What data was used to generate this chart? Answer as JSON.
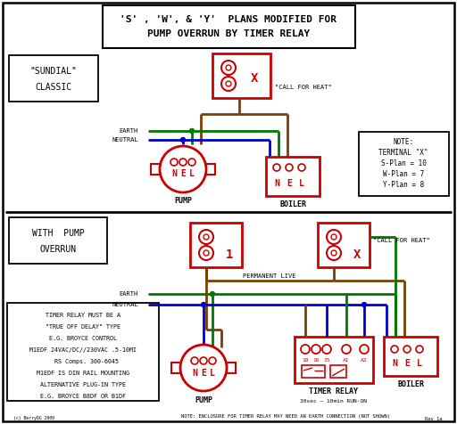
{
  "title_line1": "'S' , 'W', & 'Y'  PLANS MODIFIED FOR",
  "title_line2": "PUMP OVERRUN BY TIMER RELAY",
  "bg_color": "#ffffff",
  "red": "#cc0000",
  "green": "#007700",
  "blue": "#0000cc",
  "brown": "#7B3F00",
  "black": "#000000",
  "timer_note_lines": [
    "TIMER RELAY MUST BE A",
    "\"TRUE OFF DELAY\" TYPE",
    "E.G. BROYCE CONTROL",
    "M1EDF 24VAC/DC//230VAC .5-10MI",
    "  RS Comps. 300-6045",
    "M1EDF IS DIN RAIL MOUNTING",
    "ALTERNATIVE PLUG-IN TYPE",
    "E.G. BROYCE B8DF OR B1DF"
  ],
  "bottom_note": "NOTE: ENCLOSURE FOR TIMER RELAY MAY NEED AN EARTH CONNECTION (NOT SHOWN)",
  "copyright": "(c) BerryDG 2009",
  "rev_note": "Rev 1a"
}
